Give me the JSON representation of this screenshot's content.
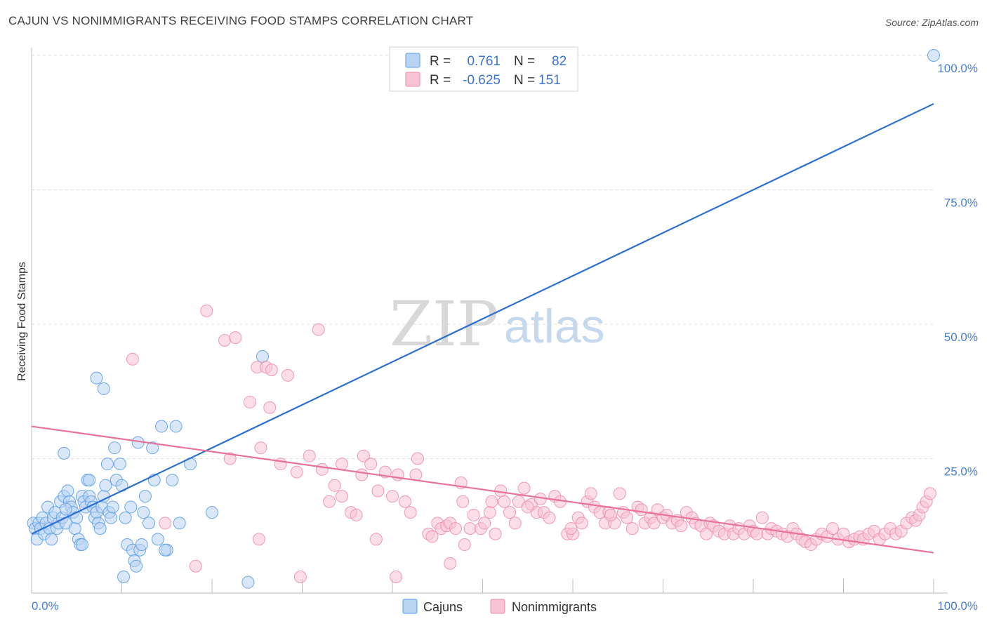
{
  "chart_data": {
    "type": "scatter",
    "title": "CAJUN VS NONIMMIGRANTS RECEIVING FOOD STAMPS CORRELATION CHART",
    "source": "Source: ZipAtlas.com",
    "xlabel": "",
    "ylabel": "Receiving Food Stamps",
    "xlim": [
      0,
      100
    ],
    "ylim": [
      0,
      100
    ],
    "x_tick_labels": [
      "0.0%",
      "100.0%"
    ],
    "y_tick_labels": [
      "100.0%",
      "75.0%",
      "50.0%",
      "25.0%"
    ],
    "y_tick_values": [
      100,
      75,
      50,
      25
    ],
    "watermark": {
      "zip": "ZIP",
      "atlas": "atlas"
    },
    "legend": {
      "rows": [
        {
          "r_label": "R =",
          "r_value": "0.761",
          "n_label": "N =",
          "n_value": "82"
        },
        {
          "r_label": "R =",
          "r_value": "-0.625",
          "n_label": "N =",
          "n_value": "151"
        }
      ]
    },
    "series": [
      {
        "name": "Cajuns",
        "color": "#5b9ee8",
        "fill": "#b9d3f3",
        "line_color": "#2b6fd0",
        "r": 0.761,
        "n": 82,
        "trend": {
          "x0": 0,
          "y0": 11,
          "x1": 100,
          "y1": 91
        },
        "points": [
          [
            0.2,
            13
          ],
          [
            0.4,
            12
          ],
          [
            0.6,
            10
          ],
          [
            0.8,
            13
          ],
          [
            1,
            12
          ],
          [
            1.2,
            14
          ],
          [
            1.4,
            11
          ],
          [
            1.6,
            13
          ],
          [
            1.8,
            16
          ],
          [
            2,
            12
          ],
          [
            2.2,
            10
          ],
          [
            2.4,
            14
          ],
          [
            2.6,
            15
          ],
          [
            2.8,
            12
          ],
          [
            3,
            13
          ],
          [
            3.2,
            17
          ],
          [
            3.4,
            14
          ],
          [
            3.6,
            18
          ],
          [
            3.8,
            13
          ],
          [
            4,
            19
          ],
          [
            4.2,
            17
          ],
          [
            4.4,
            16
          ],
          [
            4.6,
            15
          ],
          [
            4.8,
            12
          ],
          [
            5,
            14
          ],
          [
            5.2,
            10
          ],
          [
            5.4,
            9
          ],
          [
            5.6,
            18
          ],
          [
            5.8,
            17
          ],
          [
            6,
            16
          ],
          [
            6.2,
            21
          ],
          [
            6.4,
            18
          ],
          [
            6.6,
            17
          ],
          [
            6.8,
            16
          ],
          [
            7,
            14
          ],
          [
            7.2,
            15
          ],
          [
            7.4,
            13
          ],
          [
            7.6,
            12
          ],
          [
            7.8,
            16
          ],
          [
            8,
            18
          ],
          [
            8.2,
            20
          ],
          [
            8.6,
            15
          ],
          [
            8.8,
            14
          ],
          [
            9,
            16
          ],
          [
            9.4,
            21
          ],
          [
            9.8,
            24
          ],
          [
            10,
            20
          ],
          [
            10.4,
            14
          ],
          [
            10.6,
            9
          ],
          [
            11,
            16
          ],
          [
            11.2,
            8
          ],
          [
            11.4,
            6
          ],
          [
            11.8,
            28
          ],
          [
            12,
            8
          ],
          [
            12.4,
            15
          ],
          [
            12.6,
            18
          ],
          [
            13,
            13
          ],
          [
            13.6,
            21
          ],
          [
            14,
            10
          ],
          [
            14.4,
            31
          ],
          [
            15,
            8
          ],
          [
            15.6,
            21
          ],
          [
            16,
            31
          ],
          [
            16.4,
            13
          ],
          [
            3.6,
            26
          ],
          [
            6.4,
            21
          ],
          [
            7.2,
            40
          ],
          [
            8,
            38
          ],
          [
            8.4,
            24
          ],
          [
            9.2,
            27
          ],
          [
            10.2,
            3
          ],
          [
            11.6,
            5
          ],
          [
            12.2,
            9
          ],
          [
            13.4,
            27
          ],
          [
            14.8,
            8
          ],
          [
            17.6,
            24
          ],
          [
            20,
            15
          ],
          [
            24,
            2
          ],
          [
            25.6,
            44
          ],
          [
            100,
            100
          ],
          [
            3.8,
            15.6
          ],
          [
            5.6,
            9
          ]
        ]
      },
      {
        "name": "Nonimmigrants",
        "color": "#ee8fae",
        "fill": "#f7c2d3",
        "line_color": "#e8729a",
        "r": -0.625,
        "n": 151,
        "trend": {
          "x0": 0,
          "y0": 31,
          "x1": 100,
          "y1": 7.5
        },
        "points": [
          [
            11.2,
            43.5
          ],
          [
            19.4,
            52.5
          ],
          [
            21.4,
            47
          ],
          [
            22.6,
            47.5
          ],
          [
            25,
            42
          ],
          [
            26,
            42
          ],
          [
            26.6,
            41.5
          ],
          [
            28.4,
            40.5
          ],
          [
            24.2,
            35.5
          ],
          [
            26.4,
            34.5
          ],
          [
            31.8,
            49
          ],
          [
            25.4,
            27
          ],
          [
            27.6,
            24
          ],
          [
            29.4,
            22.5
          ],
          [
            30.8,
            25.5
          ],
          [
            32.2,
            23
          ],
          [
            33,
            17
          ],
          [
            33.6,
            20
          ],
          [
            34.4,
            18
          ],
          [
            35.4,
            15
          ],
          [
            36,
            14.5
          ],
          [
            36.6,
            22
          ],
          [
            36.8,
            25.5
          ],
          [
            37.6,
            24
          ],
          [
            38.2,
            10
          ],
          [
            38.4,
            19
          ],
          [
            39.2,
            22.5
          ],
          [
            40,
            18
          ],
          [
            40.6,
            22
          ],
          [
            41.4,
            17
          ],
          [
            42,
            15
          ],
          [
            42.6,
            22
          ],
          [
            42.8,
            25
          ],
          [
            44,
            11
          ],
          [
            44.4,
            10.5
          ],
          [
            45,
            13
          ],
          [
            45.4,
            12
          ],
          [
            46,
            12.5
          ],
          [
            46.4,
            13
          ],
          [
            47,
            12
          ],
          [
            47.6,
            20.5
          ],
          [
            47.8,
            17
          ],
          [
            48,
            9
          ],
          [
            48.6,
            12
          ],
          [
            49,
            14.5
          ],
          [
            49.8,
            12
          ],
          [
            50.2,
            13
          ],
          [
            50.8,
            15
          ],
          [
            51.4,
            11
          ],
          [
            52,
            19
          ],
          [
            52.4,
            17
          ],
          [
            53,
            15
          ],
          [
            53.6,
            13
          ],
          [
            54,
            17
          ],
          [
            54.6,
            19.5
          ],
          [
            55.4,
            16.5
          ],
          [
            56,
            15
          ],
          [
            56.4,
            17.5
          ],
          [
            56.8,
            15
          ],
          [
            57.4,
            14
          ],
          [
            58,
            18
          ],
          [
            58.6,
            17
          ],
          [
            59.4,
            11
          ],
          [
            60,
            11
          ],
          [
            60.6,
            14
          ],
          [
            61,
            13
          ],
          [
            61.6,
            17
          ],
          [
            62,
            18.5
          ],
          [
            62.4,
            16
          ],
          [
            63,
            15
          ],
          [
            63.6,
            13
          ],
          [
            64,
            15
          ],
          [
            64.6,
            13
          ],
          [
            65.2,
            18.5
          ],
          [
            65.6,
            15
          ],
          [
            66,
            14
          ],
          [
            66.6,
            12
          ],
          [
            67.2,
            16
          ],
          [
            67.6,
            15.5
          ],
          [
            68,
            13
          ],
          [
            68.6,
            14
          ],
          [
            69,
            13
          ],
          [
            69.4,
            15.5
          ],
          [
            70,
            14
          ],
          [
            70.4,
            14.5
          ],
          [
            71,
            13
          ],
          [
            71.6,
            13.5
          ],
          [
            72,
            12.5
          ],
          [
            72.6,
            15
          ],
          [
            73.2,
            14
          ],
          [
            73.6,
            13
          ],
          [
            74.2,
            12.5
          ],
          [
            74.8,
            11
          ],
          [
            75.2,
            13
          ],
          [
            75.6,
            12.5
          ],
          [
            76.2,
            11.5
          ],
          [
            76.8,
            11
          ],
          [
            77.4,
            12.5
          ],
          [
            77.8,
            11
          ],
          [
            78.4,
            12
          ],
          [
            79,
            11
          ],
          [
            79.6,
            12.5
          ],
          [
            80,
            11.5
          ],
          [
            80.4,
            11
          ],
          [
            81,
            14
          ],
          [
            81.6,
            11
          ],
          [
            82,
            12
          ],
          [
            82.6,
            11.5
          ],
          [
            83.2,
            11
          ],
          [
            83.8,
            10.5
          ],
          [
            84.4,
            12
          ],
          [
            84.8,
            11
          ],
          [
            85.4,
            10
          ],
          [
            85.8,
            9.5
          ],
          [
            86.4,
            9
          ],
          [
            87,
            10
          ],
          [
            87.6,
            11
          ],
          [
            88.2,
            10.5
          ],
          [
            88.8,
            12
          ],
          [
            89.4,
            10
          ],
          [
            90,
            11
          ],
          [
            90.6,
            9.5
          ],
          [
            91.2,
            10
          ],
          [
            91.8,
            10.5
          ],
          [
            92.2,
            10
          ],
          [
            92.8,
            11
          ],
          [
            93.4,
            11.5
          ],
          [
            94,
            10
          ],
          [
            94.6,
            11
          ],
          [
            95.2,
            12
          ],
          [
            95.8,
            11
          ],
          [
            96.4,
            11.5
          ],
          [
            97,
            13
          ],
          [
            97.6,
            14
          ],
          [
            98,
            13.5
          ],
          [
            98.4,
            14.5
          ],
          [
            98.8,
            16
          ],
          [
            99.2,
            17
          ],
          [
            99.6,
            18.5
          ],
          [
            14.8,
            13
          ],
          [
            18.2,
            5
          ],
          [
            22,
            25
          ],
          [
            25.2,
            10
          ],
          [
            29.8,
            3
          ],
          [
            34.4,
            24
          ],
          [
            40.4,
            3
          ],
          [
            46.4,
            5.5
          ],
          [
            51,
            17
          ],
          [
            55,
            16
          ],
          [
            59.8,
            12
          ],
          [
            64.2,
            14.5
          ]
        ]
      }
    ]
  }
}
